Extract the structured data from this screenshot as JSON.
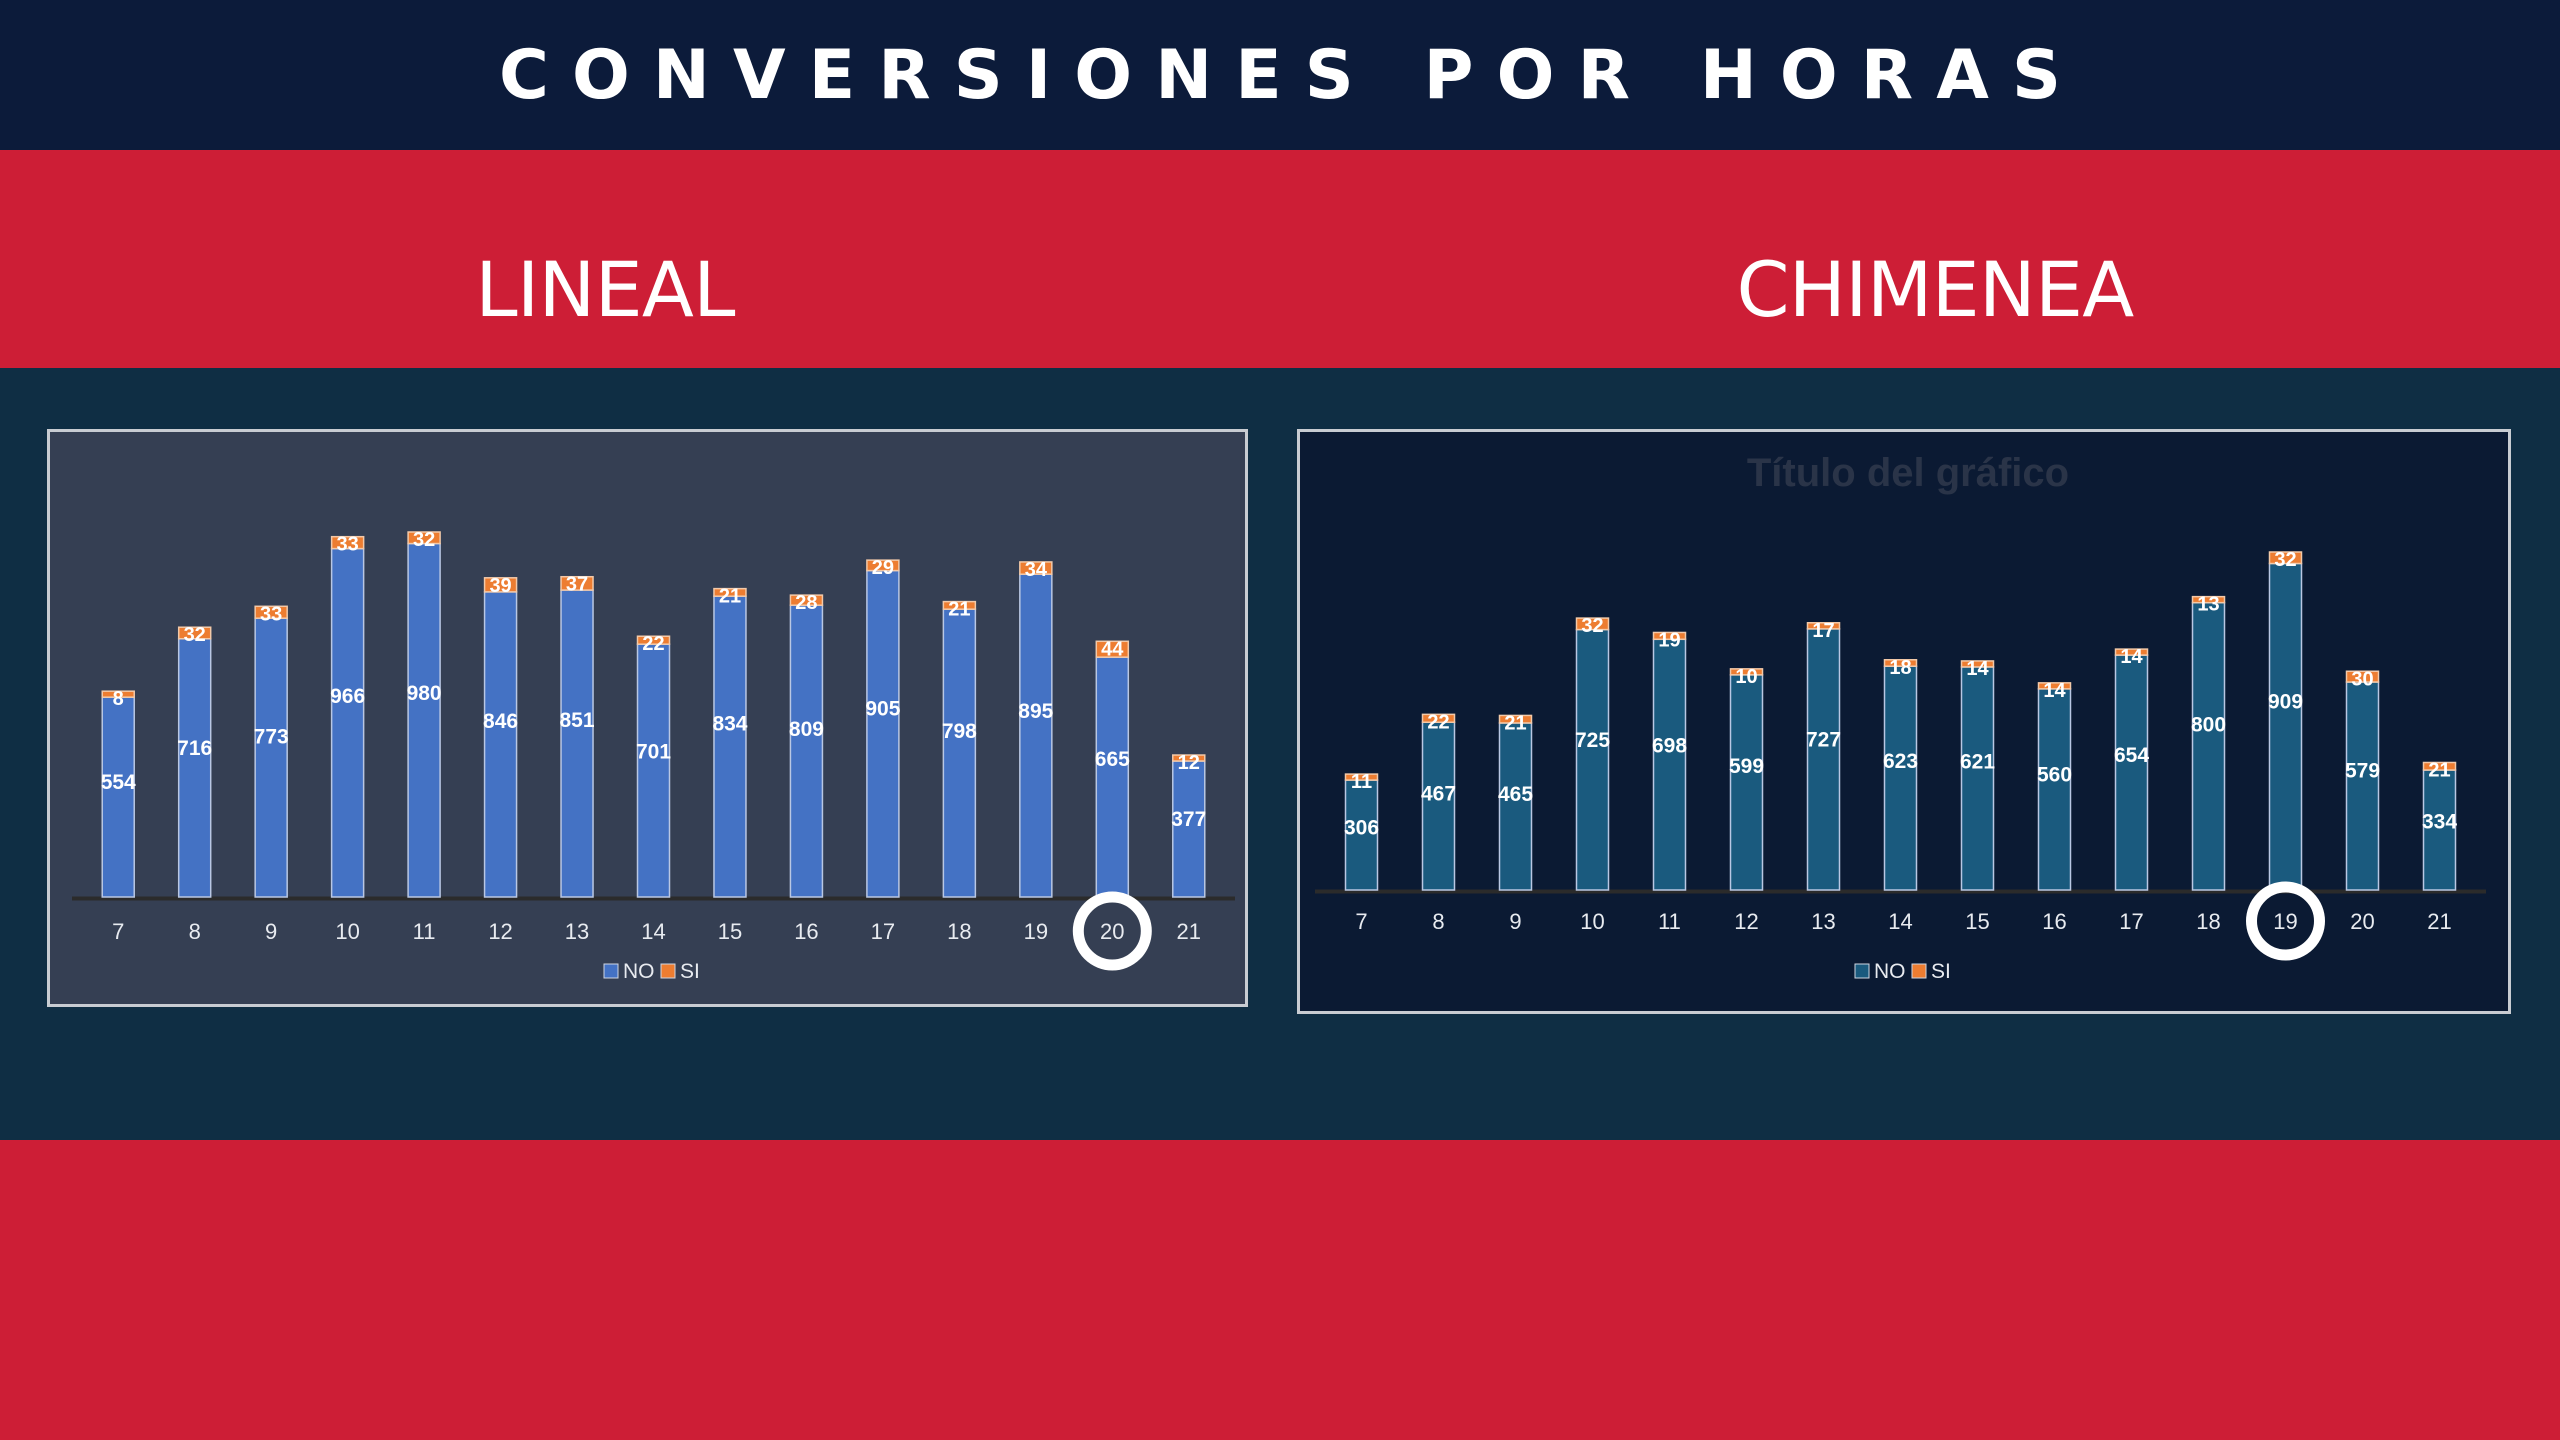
{
  "header": {
    "title": "CONVERSIONES POR HORAS"
  },
  "sections": {
    "left_title": "LINEAL",
    "right_title": "CHIMENEA"
  },
  "chart_data": [
    {
      "type": "bar",
      "stacked": true,
      "categories": [
        "7",
        "8",
        "9",
        "10",
        "11",
        "12",
        "13",
        "14",
        "15",
        "16",
        "17",
        "18",
        "19",
        "20",
        "21"
      ],
      "series": [
        {
          "name": "NO",
          "values": [
            554,
            716,
            773,
            966,
            980,
            846,
            851,
            701,
            834,
            809,
            905,
            798,
            895,
            665,
            377
          ],
          "color": "#4472c4"
        },
        {
          "name": "SI",
          "values": [
            8,
            32,
            33,
            33,
            32,
            39,
            37,
            22,
            21,
            28,
            29,
            21,
            34,
            44,
            12
          ],
          "color": "#ed7d31"
        }
      ],
      "highlight_category": "20",
      "legend_position": "bottom",
      "grid": false,
      "ylim": [
        0,
        1012
      ]
    },
    {
      "type": "bar",
      "stacked": true,
      "title": "Título del gráfico",
      "categories": [
        "7",
        "8",
        "9",
        "10",
        "11",
        "12",
        "13",
        "14",
        "15",
        "16",
        "17",
        "18",
        "19",
        "20",
        "21"
      ],
      "series": [
        {
          "name": "NO",
          "values": [
            306,
            467,
            465,
            725,
            698,
            599,
            727,
            623,
            621,
            560,
            654,
            800,
            909,
            579,
            334
          ],
          "color": "#1a5a7e"
        },
        {
          "name": "SI",
          "values": [
            11,
            22,
            21,
            32,
            19,
            10,
            17,
            18,
            14,
            14,
            14,
            13,
            32,
            30,
            21
          ],
          "color": "#ed7d31"
        }
      ],
      "highlight_category": "19",
      "legend_position": "bottom",
      "grid": false,
      "ylim": [
        0,
        941
      ]
    }
  ]
}
